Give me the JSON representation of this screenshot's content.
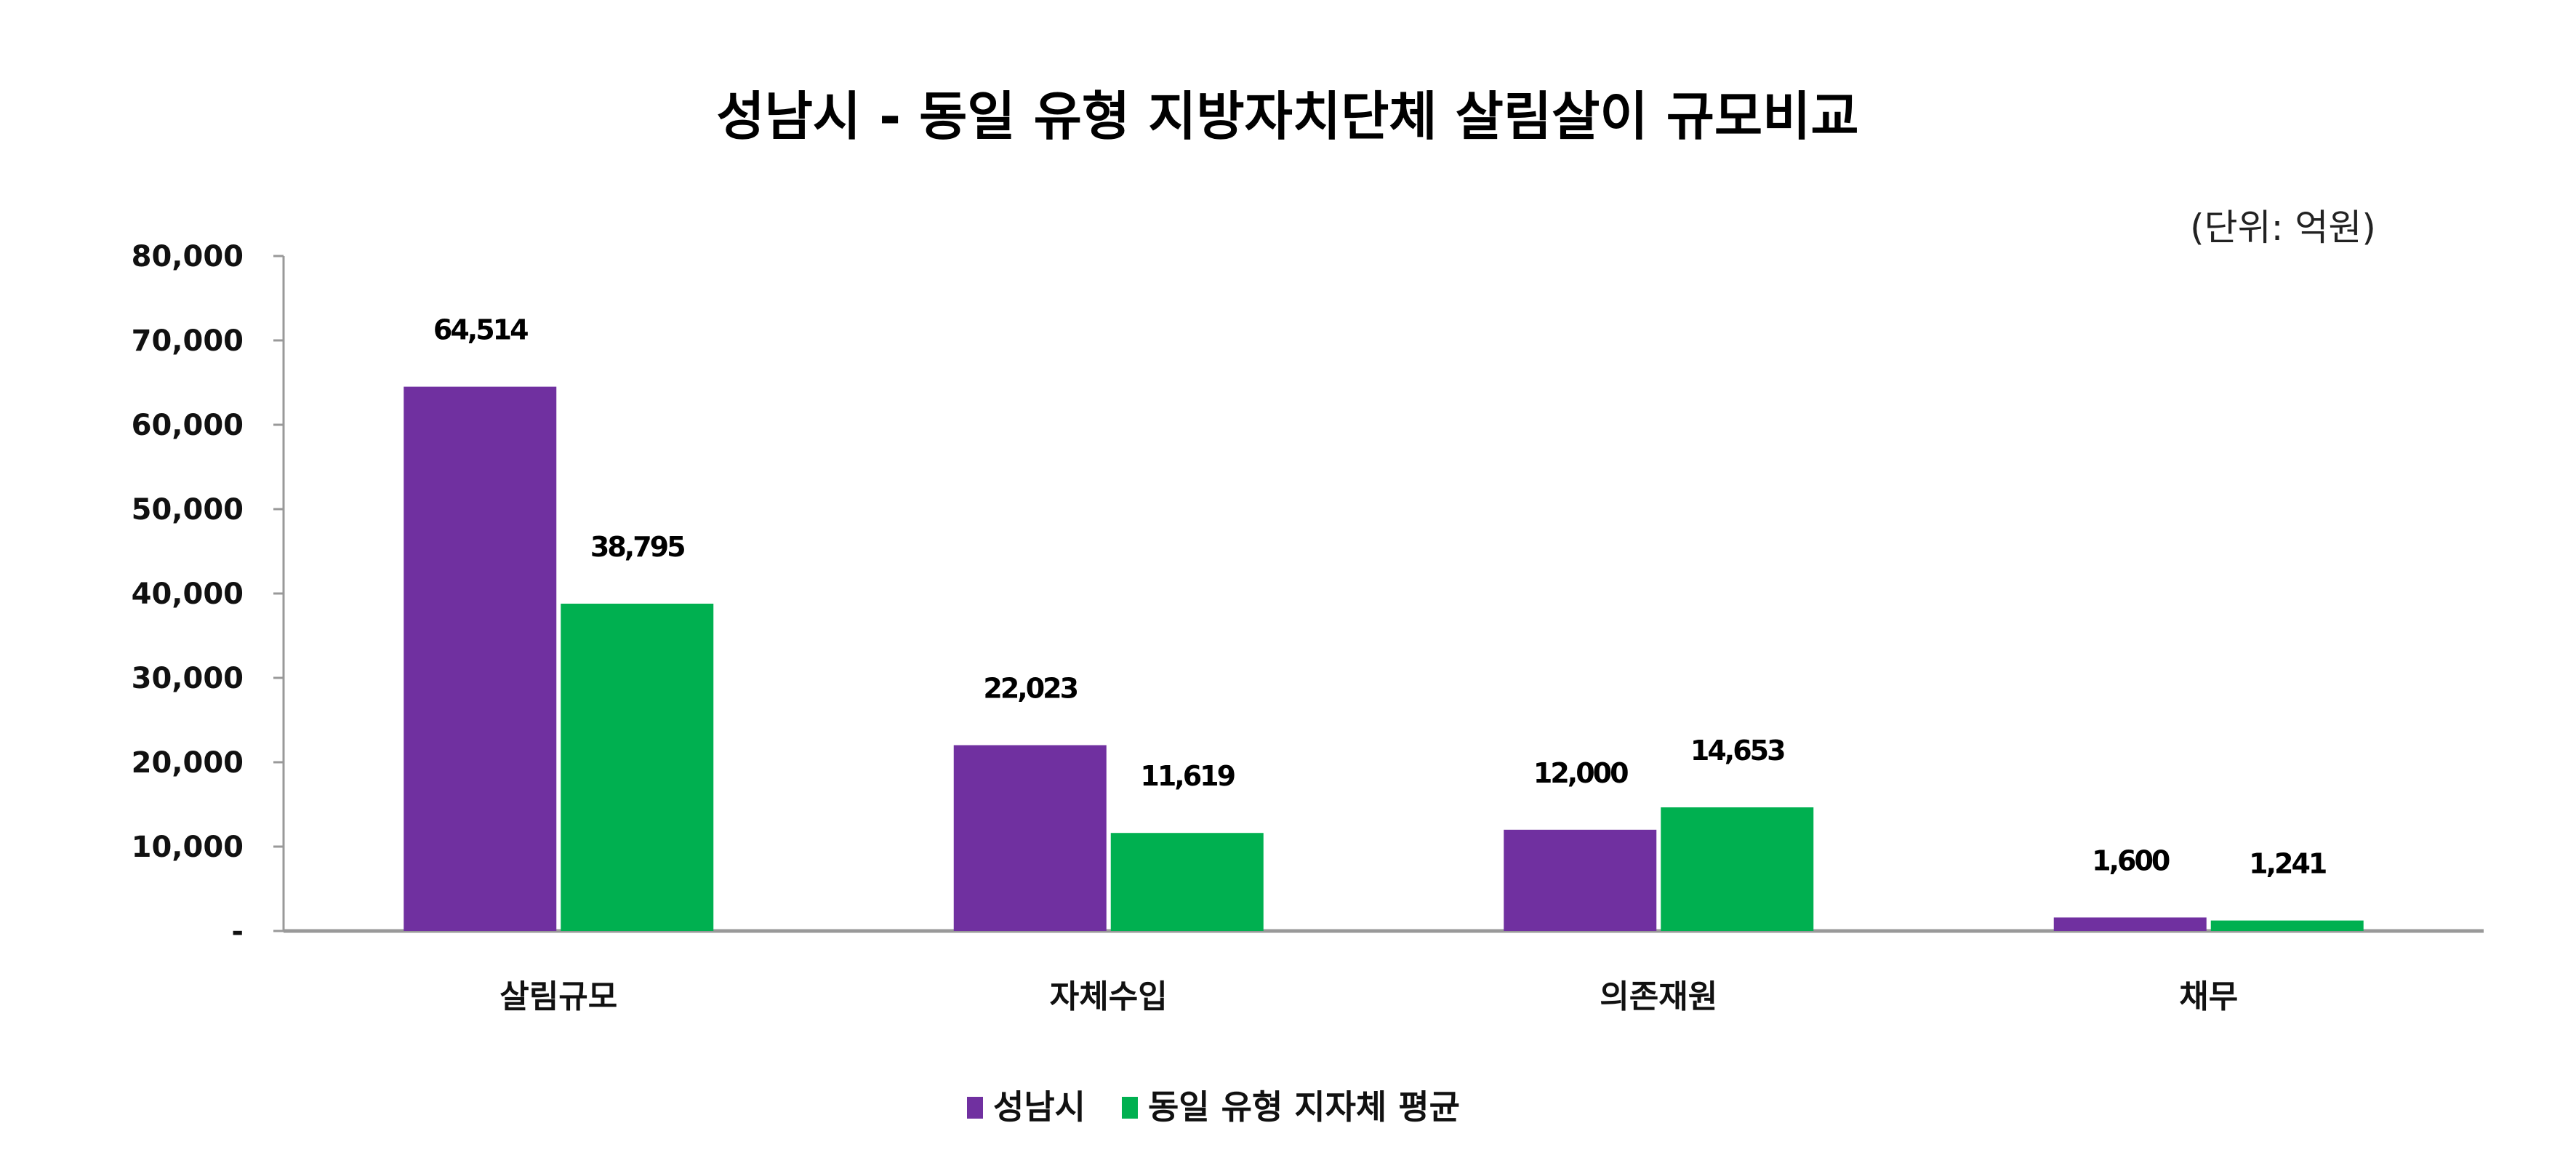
{
  "chart_data": {
    "type": "bar",
    "title": "성남시 - 동일 유형 지방자치단체 살림살이 규모비교",
    "unit_label": "(단위: 억원)",
    "xlabel": "",
    "ylabel": "",
    "ylim": [
      0,
      80000
    ],
    "yticks": [
      0,
      10000,
      20000,
      30000,
      40000,
      50000,
      60000,
      70000,
      80000
    ],
    "ytick_labels": [
      "-",
      "10,000",
      "20,000",
      "30,000",
      "40,000",
      "50,000",
      "60,000",
      "70,000",
      "80,000"
    ],
    "categories": [
      "살림규모",
      "자체수입",
      "의존재원",
      "채무"
    ],
    "series": [
      {
        "name": "성남시",
        "color": "#7030A0",
        "values": [
          64514,
          22023,
          12000,
          1600
        ],
        "labels": [
          "64,514",
          "22,023",
          "12,000",
          "1,600"
        ]
      },
      {
        "name": "동일 유형 지자체 평균",
        "color": "#00B050",
        "values": [
          38795,
          11619,
          14653,
          1241
        ],
        "labels": [
          "38,795",
          "11,619",
          "14,653",
          "1,241"
        ]
      }
    ],
    "grid": false,
    "legend_position": "bottom"
  }
}
